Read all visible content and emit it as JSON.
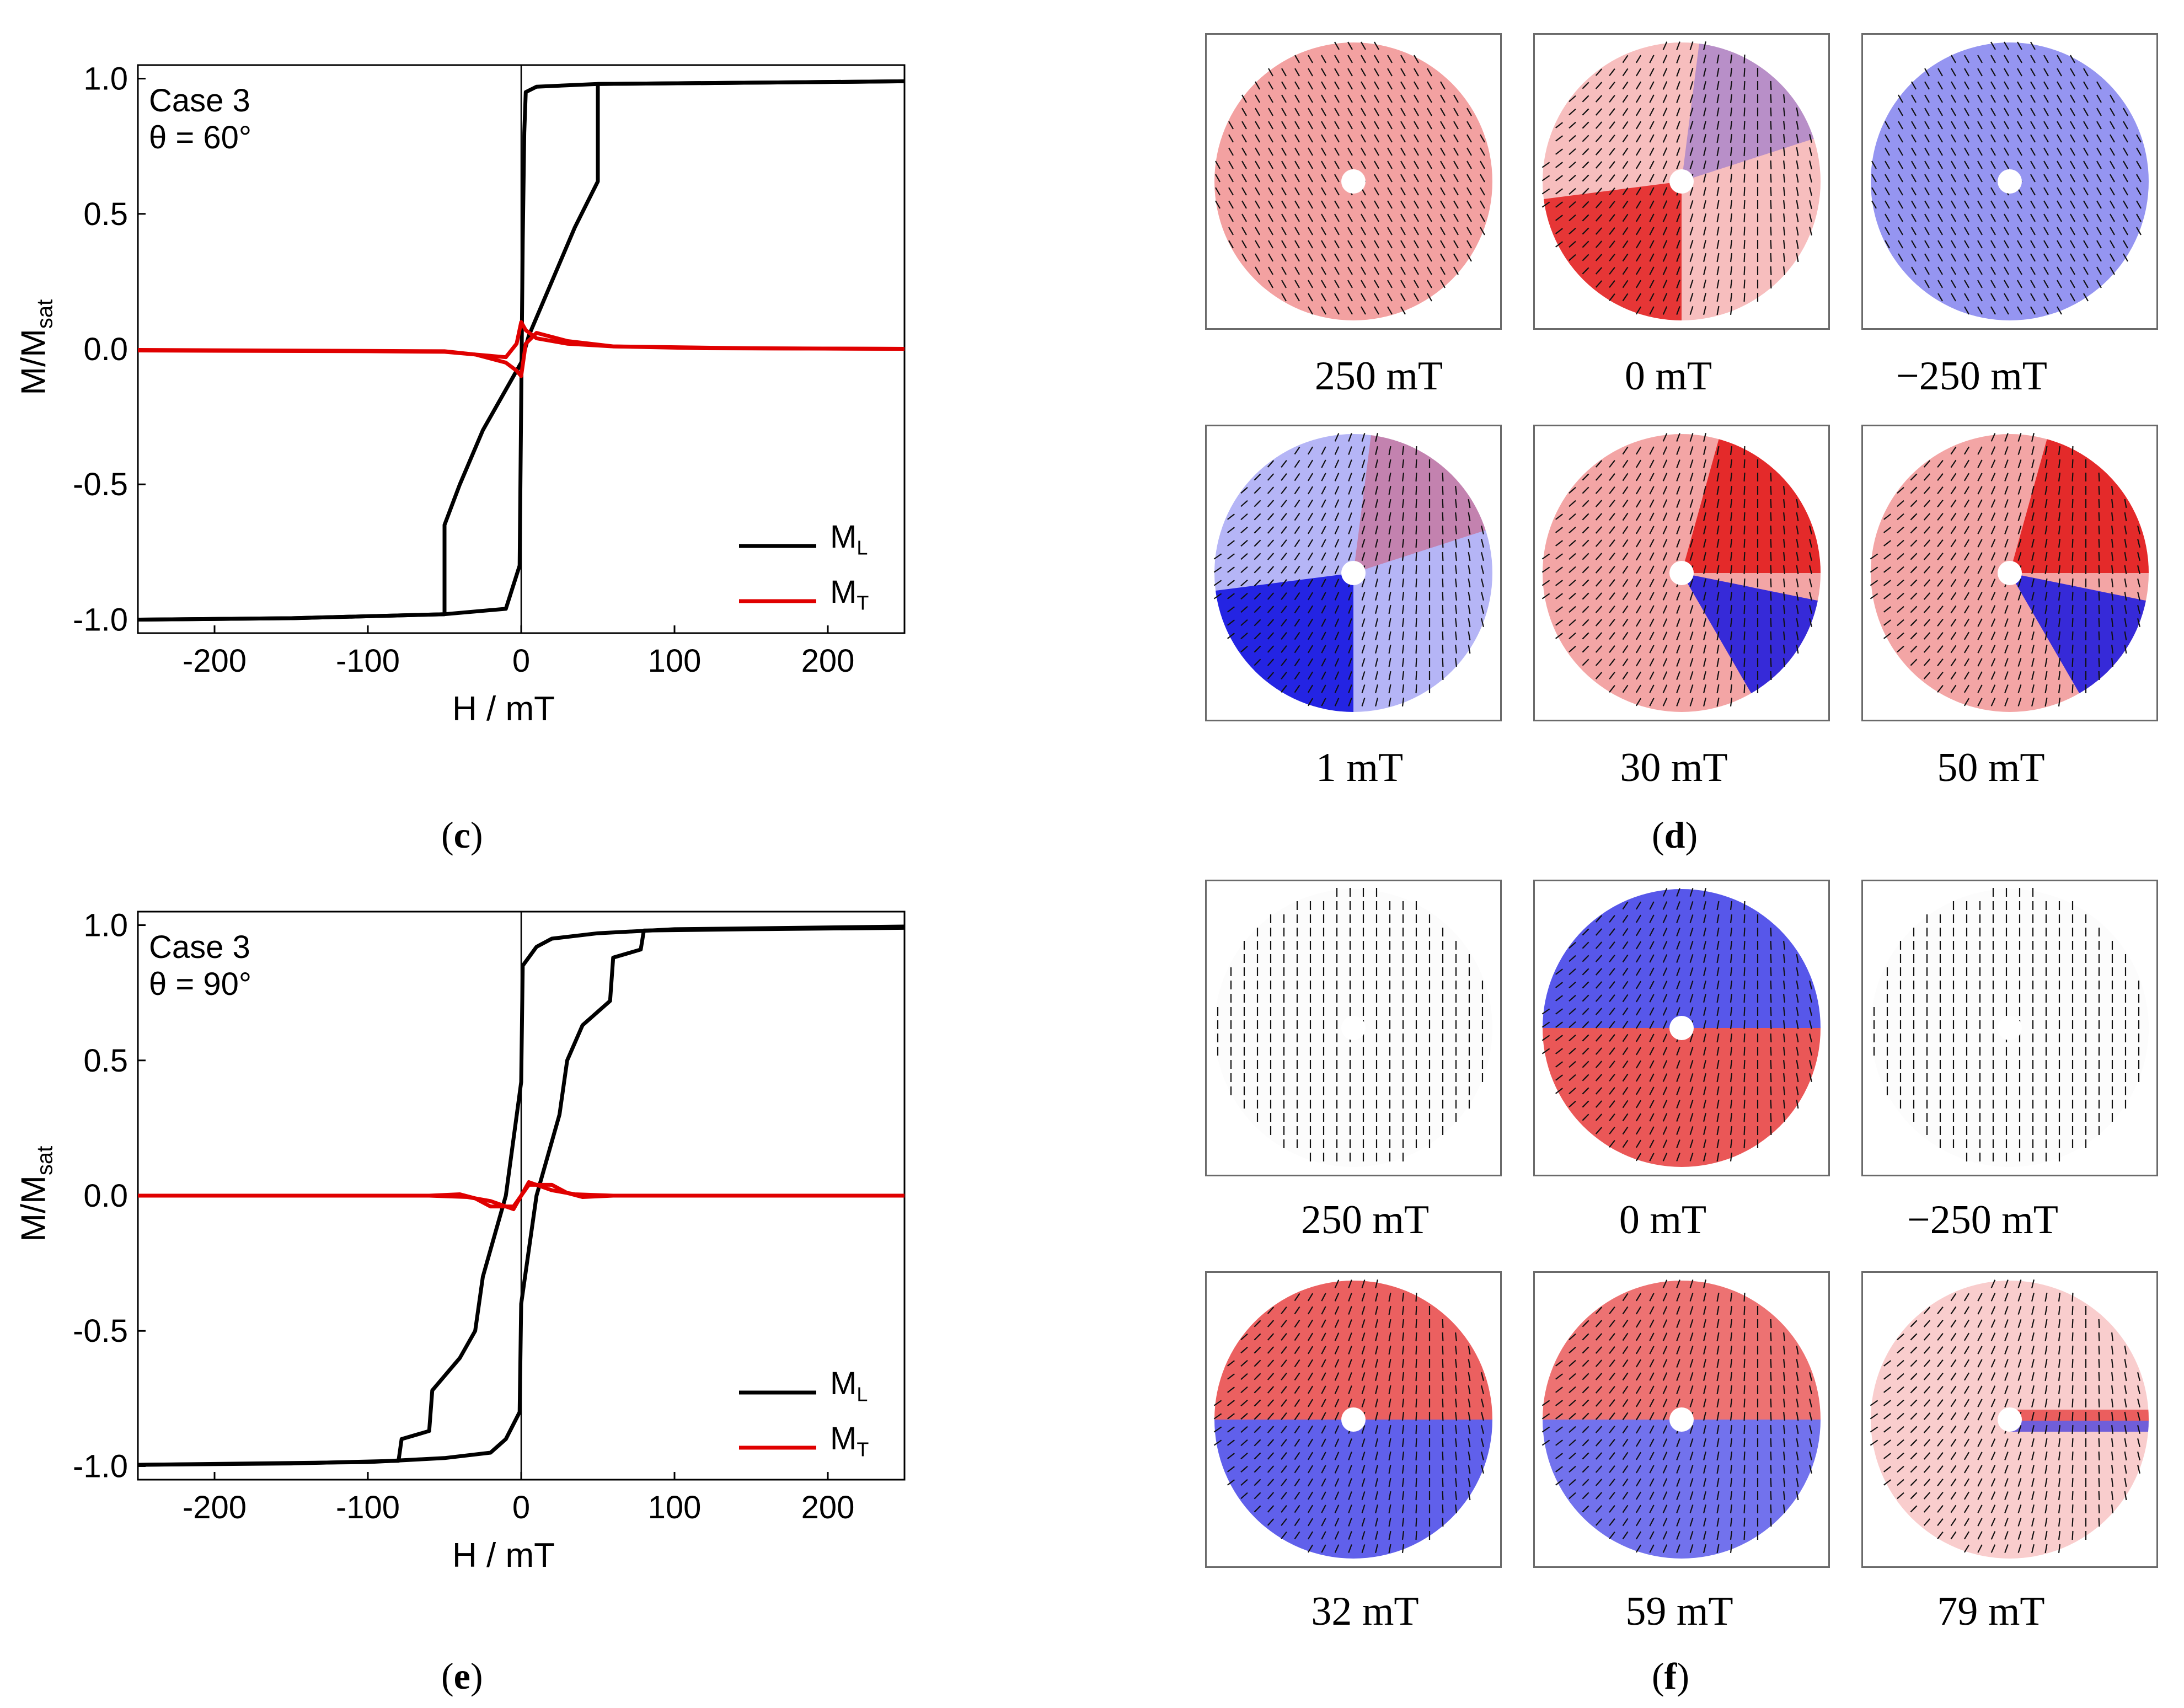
{
  "panel_labels": {
    "c": "c",
    "d": "d",
    "e": "e",
    "f": "f"
  },
  "chart_data": [
    {
      "type": "line",
      "id": "c",
      "annotation_lines": [
        "Case 3",
        "θ = 60°"
      ],
      "xlabel": "H / mT",
      "ylabel_main": "M/M",
      "ylabel_sub": "sat",
      "xlim": [
        -250,
        250
      ],
      "ylim": [
        -1.05,
        1.05
      ],
      "xticks": [
        -200,
        -100,
        0,
        100,
        200
      ],
      "xtick_labels": [
        "-200",
        "-100",
        "0",
        "100",
        "200"
      ],
      "yticks": [
        -1,
        -0.5,
        0,
        0.5,
        1
      ],
      "ytick_labels": [
        "-1.0",
        "-0.5",
        "0.0",
        "0.5",
        "1.0"
      ],
      "legend_position": "bottom-right",
      "series": [
        {
          "name": "M",
          "name_sub": "L",
          "color": "#000000",
          "points": [
            [
              250,
              0.99
            ],
            [
              150,
              0.985
            ],
            [
              50,
              0.98
            ],
            [
              10,
              0.97
            ],
            [
              3,
              0.95
            ],
            [
              2,
              0.8
            ],
            [
              1,
              0.4
            ],
            [
              0,
              -0.2
            ],
            [
              -1,
              -0.8
            ],
            [
              -10,
              -0.96
            ],
            [
              -50,
              -0.98
            ],
            [
              -150,
              -0.995
            ],
            [
              -250,
              -1.0
            ]
          ]
        },
        {
          "name": "",
          "color": "#000000",
          "points": [
            [
              -250,
              -1.0
            ],
            [
              -150,
              -0.995
            ],
            [
              -50,
              -0.98
            ],
            [
              -50,
              -0.65
            ],
            [
              -40,
              -0.5
            ],
            [
              -25,
              -0.3
            ],
            [
              -10,
              -0.15
            ],
            [
              0,
              -0.05
            ],
            [
              5,
              0.05
            ],
            [
              20,
              0.25
            ],
            [
              35,
              0.45
            ],
            [
              50,
              0.62
            ],
            [
              50,
              0.98
            ],
            [
              150,
              0.985
            ],
            [
              250,
              0.99
            ]
          ]
        },
        {
          "name": "M",
          "name_sub": "T",
          "color": "#e00000",
          "points": [
            [
              -250,
              -0.005
            ],
            [
              -100,
              -0.008
            ],
            [
              -50,
              -0.01
            ],
            [
              -30,
              -0.02
            ],
            [
              -10,
              -0.05
            ],
            [
              -3,
              -0.08
            ],
            [
              0,
              -0.1
            ],
            [
              3,
              0.02
            ],
            [
              10,
              0.06
            ],
            [
              30,
              0.03
            ],
            [
              60,
              0.01
            ],
            [
              150,
              0.003
            ],
            [
              250,
              0.001
            ]
          ]
        },
        {
          "name": "",
          "color": "#e00000",
          "points": [
            [
              250,
              0.001
            ],
            [
              120,
              0.003
            ],
            [
              60,
              0.01
            ],
            [
              30,
              0.02
            ],
            [
              10,
              0.04
            ],
            [
              3,
              0.07
            ],
            [
              0,
              0.1
            ],
            [
              -3,
              0.02
            ],
            [
              -10,
              -0.03
            ],
            [
              -30,
              -0.02
            ],
            [
              -50,
              -0.008
            ],
            [
              -250,
              -0.003
            ]
          ]
        }
      ]
    },
    {
      "type": "line",
      "id": "e",
      "annotation_lines": [
        "Case 3",
        "θ = 90°"
      ],
      "xlabel": "H / mT",
      "ylabel_main": "M/M",
      "ylabel_sub": "sat",
      "xlim": [
        -250,
        250
      ],
      "ylim": [
        -1.05,
        1.05
      ],
      "xticks": [
        -200,
        -100,
        0,
        100,
        200
      ],
      "xtick_labels": [
        "-200",
        "-100",
        "0",
        "100",
        "200"
      ],
      "yticks": [
        -1,
        -0.5,
        0,
        0.5,
        1
      ],
      "ytick_labels": [
        "-1.0",
        "-0.5",
        "0.0",
        "0.5",
        "1.0"
      ],
      "legend_position": "bottom-right",
      "series": [
        {
          "name": "M",
          "name_sub": "L",
          "color": "#000000",
          "points": [
            [
              250,
              0.99
            ],
            [
              150,
              0.985
            ],
            [
              80,
              0.98
            ],
            [
              78,
              0.91
            ],
            [
              60,
              0.88
            ],
            [
              58,
              0.72
            ],
            [
              40,
              0.63
            ],
            [
              30,
              0.5
            ],
            [
              25,
              0.3
            ],
            [
              15,
              0.1
            ],
            [
              10,
              0.0
            ],
            [
              0,
              -0.4
            ],
            [
              -1,
              -0.8
            ],
            [
              -10,
              -0.9
            ],
            [
              -20,
              -0.95
            ],
            [
              -50,
              -0.97
            ],
            [
              -100,
              -0.985
            ],
            [
              -250,
              -0.995
            ]
          ]
        },
        {
          "name": "",
          "color": "#000000",
          "points": [
            [
              -250,
              -0.995
            ],
            [
              -150,
              -0.99
            ],
            [
              -80,
              -0.98
            ],
            [
              -78,
              -0.9
            ],
            [
              -60,
              -0.87
            ],
            [
              -58,
              -0.72
            ],
            [
              -40,
              -0.6
            ],
            [
              -30,
              -0.5
            ],
            [
              -25,
              -0.3
            ],
            [
              -15,
              -0.1
            ],
            [
              -10,
              0.0
            ],
            [
              0,
              0.42
            ],
            [
              1,
              0.85
            ],
            [
              10,
              0.92
            ],
            [
              20,
              0.95
            ],
            [
              50,
              0.97
            ],
            [
              100,
              0.985
            ],
            [
              250,
              0.995
            ]
          ]
        },
        {
          "name": "M",
          "name_sub": "T",
          "color": "#e00000",
          "points": [
            [
              -250,
              0.0
            ],
            [
              -60,
              0.0
            ],
            [
              -40,
              0.005
            ],
            [
              -30,
              -0.01
            ],
            [
              -20,
              -0.04
            ],
            [
              -5,
              -0.04
            ],
            [
              0,
              0.0
            ],
            [
              5,
              0.05
            ],
            [
              20,
              0.02
            ],
            [
              35,
              0.005
            ],
            [
              60,
              0.0
            ],
            [
              250,
              0.0
            ]
          ]
        },
        {
          "name": "",
          "color": "#e00000",
          "points": [
            [
              250,
              0.0
            ],
            [
              60,
              0.0
            ],
            [
              40,
              -0.005
            ],
            [
              30,
              0.01
            ],
            [
              20,
              0.04
            ],
            [
              5,
              0.04
            ],
            [
              0,
              0.0
            ],
            [
              -5,
              -0.05
            ],
            [
              -20,
              -0.02
            ],
            [
              -35,
              -0.005
            ],
            [
              -60,
              0.0
            ],
            [
              -250,
              0.0
            ]
          ]
        }
      ]
    }
  ],
  "maps_d": [
    {
      "caption": "250 mT",
      "pattern": "uniform",
      "angle_deg": 120,
      "color": "red",
      "strength": 0.4
    },
    {
      "caption": "0 mT",
      "pattern": "domains",
      "color": "red",
      "strength": 0.8
    },
    {
      "caption": "−250 mT",
      "pattern": "uniform",
      "angle_deg": 300,
      "color": "blue",
      "strength": 0.45
    },
    {
      "caption": "1 mT",
      "pattern": "domains",
      "color": "blue",
      "strength": 0.9
    },
    {
      "caption": "30 mT",
      "pattern": "split",
      "color": "red",
      "strength": 0.85
    },
    {
      "caption": "50 mT",
      "pattern": "split",
      "color": "red",
      "strength": 0.85
    }
  ],
  "maps_f": [
    {
      "caption": "250 mT",
      "pattern": "uniform",
      "angle_deg": 90,
      "color": "neutral",
      "strength": 0.15
    },
    {
      "caption": "0 mT",
      "pattern": "halves",
      "color": "blue",
      "strength": 0.95
    },
    {
      "caption": "−250 mT",
      "pattern": "uniform",
      "angle_deg": 270,
      "color": "neutral",
      "strength": 0.15
    },
    {
      "caption": "32 mT",
      "pattern": "halves",
      "color": "red",
      "strength": 0.9
    },
    {
      "caption": "59 mT",
      "pattern": "halves",
      "color": "red",
      "strength": 0.8
    },
    {
      "caption": "79 mT",
      "pattern": "stripe",
      "color": "red",
      "strength": 0.6
    }
  ]
}
